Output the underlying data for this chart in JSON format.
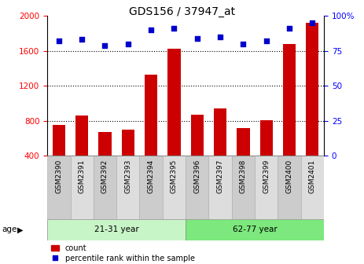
{
  "title": "GDS156 / 37947_at",
  "categories": [
    "GSM2390",
    "GSM2391",
    "GSM2392",
    "GSM2393",
    "GSM2394",
    "GSM2395",
    "GSM2396",
    "GSM2397",
    "GSM2398",
    "GSM2399",
    "GSM2400",
    "GSM2401"
  ],
  "counts": [
    750,
    860,
    670,
    700,
    1330,
    1620,
    870,
    940,
    720,
    810,
    1680,
    1920
  ],
  "percentiles": [
    82,
    83,
    79,
    80,
    90,
    91,
    84,
    85,
    80,
    82,
    91,
    95
  ],
  "groups": [
    {
      "label": "21-31 year",
      "start": 0,
      "end": 6
    },
    {
      "label": "62-77 year",
      "start": 6,
      "end": 12
    }
  ],
  "group_colors_light": [
    "#c8f5c8",
    "#7de87d"
  ],
  "ylim_left": [
    400,
    2000
  ],
  "ylim_right": [
    0,
    100
  ],
  "yticks_left": [
    400,
    800,
    1200,
    1600,
    2000
  ],
  "yticks_right": [
    0,
    25,
    50,
    75,
    100
  ],
  "bar_color": "#CC0000",
  "dot_color": "#0000CC",
  "age_label": "age",
  "legend_count": "count",
  "legend_percentile": "percentile rank within the sample",
  "grid_lines": [
    800,
    1200,
    1600
  ],
  "cell_colors": [
    "#cccccc",
    "#dddddd"
  ]
}
